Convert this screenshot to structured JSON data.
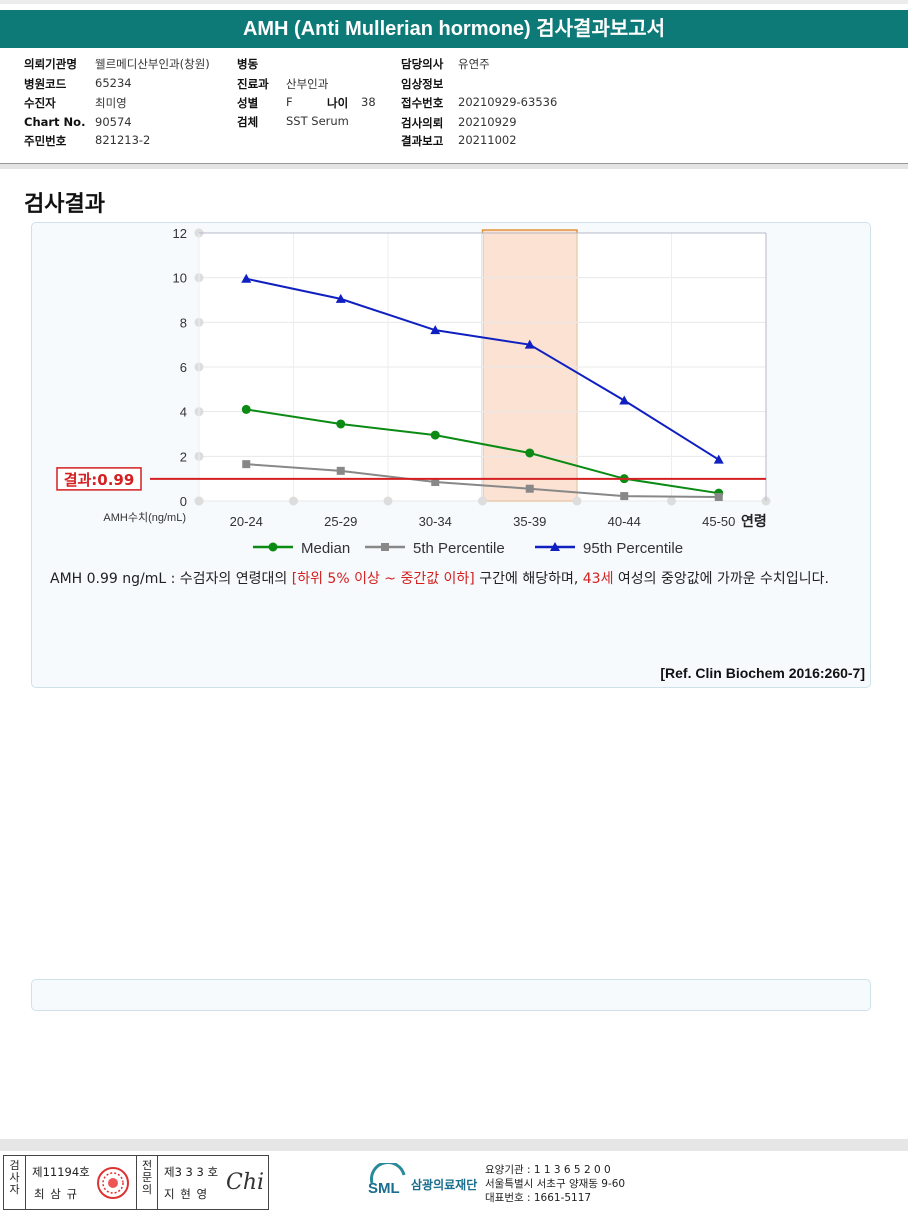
{
  "report": {
    "title": "AMH (Anti Mullerian hormone) 검사결과보고서"
  },
  "patient_info": {
    "institution_label": "의뢰기관명",
    "institution": "웰르메디산부인과(창원)",
    "ward_label": "병동",
    "ward": "",
    "doctor_label": "담당의사",
    "doctor": "유연주",
    "hospital_code_label": "병원코드",
    "hospital_code": "65234",
    "dept_label": "진료과",
    "dept": "산부인과",
    "clinical_label": "임상정보",
    "clinical": "",
    "patient_label": "수진자",
    "patient": "최미영",
    "sex_label": "성별",
    "sex": "F",
    "age_label": "나이",
    "age": "38",
    "receipt_label": "접수번호",
    "receipt": "20210929-63536",
    "chart_label": "Chart No.",
    "chart": "90574",
    "specimen_label": "검체",
    "specimen": "SST Serum",
    "request_label": "검사의뢰",
    "request": "20210929",
    "id_label": "주민번호",
    "id": "821213-2",
    "report_label": "결과보고",
    "report_date": "20211002"
  },
  "section_title": "검사결과",
  "chart_data": {
    "type": "line",
    "categories": [
      "20-24",
      "25-29",
      "30-34",
      "35-39",
      "40-44",
      "45-50"
    ],
    "series": [
      {
        "name": "Median",
        "color": "#0b8a14",
        "marker": "circle",
        "values": [
          4.1,
          3.45,
          2.95,
          2.15,
          1.0,
          0.35
        ]
      },
      {
        "name": "5th Percentile",
        "color": "#888888",
        "marker": "square",
        "values": [
          1.65,
          1.35,
          0.85,
          0.55,
          0.22,
          0.18
        ]
      },
      {
        "name": "95th Percentile",
        "color": "#1020c0",
        "marker": "triangle",
        "values": [
          9.95,
          9.05,
          7.65,
          7.0,
          4.5,
          1.85
        ]
      }
    ],
    "ylim": [
      0,
      12
    ],
    "yticks": [
      0,
      2,
      4,
      6,
      8,
      10,
      12
    ],
    "xlabel": "연령",
    "ylabel": "AMH수치(ng/mL)",
    "highlight_category": "35-39",
    "result_line": {
      "value": 0.99,
      "label": "결과:0.99",
      "color": "#d32020"
    },
    "legend_position": "bottom",
    "grid": true
  },
  "interpretation": {
    "prefix": "AMH  0.99 ng/mL : 수검자의 연령대의 ",
    "range": "[하위 5% 이상 ~ 중간값 이하]",
    "middle": "  구간에 해당하며, ",
    "age": "43세",
    "suffix": " 여성의 중앙값에 가까운 수치입니다."
  },
  "reference": "[Ref. Clin Biochem 2016:260-7]",
  "footer": {
    "inspector_label": "검사자",
    "inspector_no": "제11194호",
    "inspector_name": "최 삼 규",
    "specialist_label": "전문의",
    "specialist_no": "제3 3 3 호",
    "specialist_name": "지 현 영",
    "signature": "Chi",
    "logo_text": "SML",
    "foundation": "삼광의료재단",
    "org_code": "요양기관 : 1 1 3 6 5 2 0 0",
    "org_address": "서울특별시 서초구 양재동 9-60",
    "org_phone": "대표번호 : 1661-5117"
  }
}
